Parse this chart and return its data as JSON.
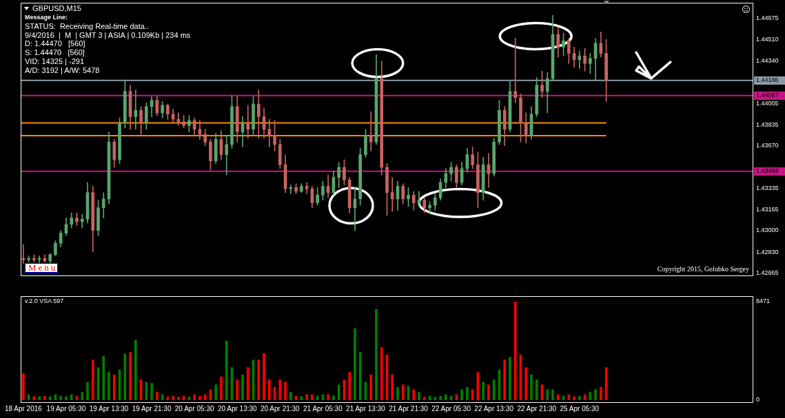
{
  "chart_data": [
    {
      "type": "candlestick",
      "title": "GBPUSD,M15",
      "categories": [
        null,
        null,
        null,
        null,
        null,
        null,
        null,
        null,
        null,
        null,
        null,
        null,
        null,
        null,
        null,
        null,
        null,
        null,
        null,
        null,
        null,
        null,
        null,
        null,
        null,
        null,
        null,
        null,
        null,
        null,
        null,
        null,
        null,
        null,
        null,
        null,
        null,
        null,
        null,
        null,
        null,
        null,
        null,
        null,
        null,
        null,
        null,
        null,
        null,
        null,
        null,
        null,
        null,
        null,
        null,
        null,
        null,
        null,
        null,
        null,
        null,
        null,
        null,
        null,
        null,
        null,
        null,
        null,
        null,
        null,
        null,
        null,
        null,
        null,
        null,
        null,
        null,
        null,
        null,
        null,
        null,
        null,
        null,
        null,
        null,
        null,
        null,
        null,
        null,
        null,
        null,
        null,
        null,
        null,
        null,
        null,
        null,
        null,
        null,
        null,
        null,
        null,
        null,
        null,
        null,
        null,
        null,
        null,
        null,
        null,
        null,
        null,
        null,
        null,
        null,
        null,
        null,
        null,
        null,
        null,
        null,
        null,
        null,
        null,
        null,
        null,
        null,
        null,
        null,
        null,
        null,
        null,
        null,
        null,
        null,
        null,
        null
      ],
      "ohlc": [
        [
          1.4278,
          1.4289,
          1.4274,
          1.4277
        ],
        [
          1.4277,
          1.428,
          1.4275,
          1.4278
        ],
        [
          1.4278,
          1.4281,
          1.4275,
          1.4277
        ],
        [
          1.4277,
          1.428,
          1.4274,
          1.4278
        ],
        [
          1.4278,
          1.4281,
          1.4275,
          1.4276
        ],
        [
          1.4276,
          1.4282,
          1.4274,
          1.4281
        ],
        [
          1.4281,
          1.4292,
          1.428,
          1.429
        ],
        [
          1.429,
          1.43,
          1.4287,
          1.4298
        ],
        [
          1.4298,
          1.431,
          1.4296,
          1.4305
        ],
        [
          1.4305,
          1.4314,
          1.4302,
          1.431
        ],
        [
          1.431,
          1.4314,
          1.4304,
          1.4307
        ],
        [
          1.4307,
          1.4313,
          1.4302,
          1.4309
        ],
        [
          1.4309,
          1.4338,
          1.4306,
          1.433
        ],
        [
          1.433,
          1.4335,
          1.4283,
          1.43
        ],
        [
          1.43,
          1.4324,
          1.4296,
          1.4318
        ],
        [
          1.4318,
          1.433,
          1.431,
          1.4325
        ],
        [
          1.4325,
          1.4378,
          1.4321,
          1.437
        ],
        [
          1.437,
          1.4372,
          1.435,
          1.4356
        ],
        [
          1.4356,
          1.4389,
          1.4353,
          1.4385
        ],
        [
          1.4385,
          1.4419,
          1.4381,
          1.441
        ],
        [
          1.441,
          1.4415,
          1.438,
          1.439
        ],
        [
          1.439,
          1.4411,
          1.438,
          1.4395
        ],
        [
          1.4395,
          1.4398,
          1.4376,
          1.4385
        ],
        [
          1.4385,
          1.4401,
          1.438,
          1.4398
        ],
        [
          1.4398,
          1.4406,
          1.439,
          1.4403
        ],
        [
          1.4403,
          1.4406,
          1.4391,
          1.4393
        ],
        [
          1.4393,
          1.4402,
          1.4389,
          1.4399
        ],
        [
          1.4399,
          1.44,
          1.4388,
          1.4392
        ],
        [
          1.4392,
          1.4396,
          1.4385,
          1.4388
        ],
        [
          1.4388,
          1.4393,
          1.4383,
          1.4386
        ],
        [
          1.4386,
          1.4391,
          1.4381,
          1.4383
        ],
        [
          1.4383,
          1.4391,
          1.4378,
          1.4387
        ],
        [
          1.4387,
          1.4389,
          1.4375,
          1.438
        ],
        [
          1.438,
          1.4387,
          1.4372,
          1.4376
        ],
        [
          1.4376,
          1.438,
          1.4367,
          1.437
        ],
        [
          1.437,
          1.4372,
          1.4348,
          1.4355
        ],
        [
          1.4355,
          1.4377,
          1.4353,
          1.4372
        ],
        [
          1.4372,
          1.4379,
          1.4356,
          1.436
        ],
        [
          1.436,
          1.4375,
          1.4344,
          1.4368
        ],
        [
          1.4368,
          1.4407,
          1.4365,
          1.4398
        ],
        [
          1.4398,
          1.4406,
          1.437,
          1.4378
        ],
        [
          1.4378,
          1.439,
          1.4366,
          1.4385
        ],
        [
          1.4385,
          1.4399,
          1.4373,
          1.438
        ],
        [
          1.438,
          1.4406,
          1.4375,
          1.44
        ],
        [
          1.44,
          1.4411,
          1.4373,
          1.439
        ],
        [
          1.439,
          1.4397,
          1.4373,
          1.438
        ],
        [
          1.438,
          1.4388,
          1.4366,
          1.4375
        ],
        [
          1.4375,
          1.4387,
          1.4363,
          1.4368
        ],
        [
          1.4368,
          1.4372,
          1.4349,
          1.4352
        ],
        [
          1.4352,
          1.436,
          1.433,
          1.4333
        ],
        [
          1.4333,
          1.4336,
          1.4329,
          1.4334
        ],
        [
          1.4334,
          1.4337,
          1.4329,
          1.4331
        ],
        [
          1.4331,
          1.4337,
          1.433,
          1.4335
        ],
        [
          1.4335,
          1.4338,
          1.4329,
          1.4333
        ],
        [
          1.4333,
          1.4335,
          1.4318,
          1.4322
        ],
        [
          1.4322,
          1.4334,
          1.432,
          1.4328
        ],
        [
          1.4328,
          1.4339,
          1.4324,
          1.4335
        ],
        [
          1.4335,
          1.4344,
          1.4326,
          1.433
        ],
        [
          1.433,
          1.4347,
          1.4328,
          1.4342
        ],
        [
          1.4342,
          1.4354,
          1.4334,
          1.435
        ],
        [
          1.435,
          1.4356,
          1.4336,
          1.434
        ],
        [
          1.434,
          1.4342,
          1.4314,
          1.4318
        ],
        [
          1.4318,
          1.4334,
          1.43,
          1.4325
        ],
        [
          1.4325,
          1.4365,
          1.432,
          1.436
        ],
        [
          1.436,
          1.438,
          1.4358,
          1.4375
        ],
        [
          1.4375,
          1.4394,
          1.4363,
          1.437
        ],
        [
          1.437,
          1.4439,
          1.4368,
          1.442
        ],
        [
          1.442,
          1.4434,
          1.4344,
          1.435
        ],
        [
          1.435,
          1.4353,
          1.4312,
          1.433
        ],
        [
          1.433,
          1.4342,
          1.4315,
          1.4325
        ],
        [
          1.4325,
          1.4339,
          1.4316,
          1.4335
        ],
        [
          1.4335,
          1.4337,
          1.4321,
          1.4325
        ],
        [
          1.4325,
          1.4334,
          1.4319,
          1.4328
        ],
        [
          1.4328,
          1.4331,
          1.4316,
          1.4322
        ],
        [
          1.4322,
          1.4331,
          1.4319,
          1.4324
        ],
        [
          1.4324,
          1.4326,
          1.4314,
          1.4318
        ],
        [
          1.4318,
          1.4323,
          1.4313,
          1.432
        ],
        [
          1.432,
          1.4329,
          1.4316,
          1.4326
        ],
        [
          1.4326,
          1.4341,
          1.4324,
          1.4338
        ],
        [
          1.4338,
          1.4349,
          1.4334,
          1.4345
        ],
        [
          1.4345,
          1.4354,
          1.4339,
          1.435
        ],
        [
          1.435,
          1.4352,
          1.4334,
          1.4338
        ],
        [
          1.4338,
          1.4354,
          1.4336,
          1.4349
        ],
        [
          1.4349,
          1.4365,
          1.4346,
          1.436
        ],
        [
          1.436,
          1.4366,
          1.4349,
          1.4352
        ],
        [
          1.4352,
          1.4362,
          1.4318,
          1.433
        ],
        [
          1.433,
          1.4358,
          1.4324,
          1.4352
        ],
        [
          1.4352,
          1.4361,
          1.4334,
          1.4345
        ],
        [
          1.4345,
          1.4373,
          1.4343,
          1.437
        ],
        [
          1.437,
          1.4403,
          1.4368,
          1.4395
        ],
        [
          1.4395,
          1.4398,
          1.4367,
          1.438
        ],
        [
          1.438,
          1.4418,
          1.4378,
          1.441
        ],
        [
          1.441,
          1.4452,
          1.4401,
          1.4405
        ],
        [
          1.4405,
          1.4408,
          1.437,
          1.4385
        ],
        [
          1.4385,
          1.4393,
          1.4369,
          1.4375
        ],
        [
          1.4375,
          1.4398,
          1.4372,
          1.4392
        ],
        [
          1.4392,
          1.4421,
          1.439,
          1.4415
        ],
        [
          1.4415,
          1.4426,
          1.4405,
          1.441
        ],
        [
          1.441,
          1.4425,
          1.4393,
          1.442
        ],
        [
          1.442,
          1.447,
          1.4418,
          1.4455
        ],
        [
          1.4455,
          1.446,
          1.4437,
          1.4445
        ],
        [
          1.4445,
          1.4456,
          1.4438,
          1.445
        ],
        [
          1.445,
          1.4452,
          1.4432,
          1.444
        ],
        [
          1.444,
          1.4445,
          1.4429,
          1.4435
        ],
        [
          1.4435,
          1.4442,
          1.4428,
          1.4438
        ],
        [
          1.4438,
          1.4444,
          1.4426,
          1.4432
        ],
        [
          1.4432,
          1.444,
          1.4424,
          1.4436
        ],
        [
          1.4436,
          1.4452,
          1.4419,
          1.4448
        ],
        [
          1.4448,
          1.4457,
          1.4437,
          1.444
        ],
        [
          1.444,
          1.4451,
          1.4402,
          1.44186
        ],
        null,
        null,
        null,
        null,
        null,
        null,
        null,
        null,
        null,
        null,
        null,
        null,
        null,
        null,
        null,
        null,
        null,
        null,
        null,
        null,
        null,
        null,
        null,
        null,
        null,
        null,
        null
      ],
      "colors": [
        "#c8645f",
        "#5aa66e",
        "#c8645f",
        "#5aa66e",
        "#c8645f",
        "#5aa66e",
        "#5aa66e",
        "#5aa66e",
        "#5aa66e",
        "#5aa66e",
        "#c8645f",
        "#5aa66e",
        "#5aa66e",
        "#c8645f",
        "#5aa66e",
        "#5aa66e",
        "#5aa66e",
        "#c8645f",
        "#5aa66e",
        "#5aa66e",
        "#c8645f",
        "#5aa66e",
        "#c8645f",
        "#5aa66e",
        "#5aa66e",
        "#c8645f",
        "#5aa66e",
        "#c8645f",
        "#c8645f",
        "#c8645f",
        "#c8645f",
        "#5aa66e",
        "#c8645f",
        "#c8645f",
        "#c8645f",
        "#c8645f",
        "#5aa66e",
        "#c8645f",
        "#5aa66e",
        "#5aa66e",
        "#c8645f",
        "#5aa66e",
        "#c8645f",
        "#5aa66e",
        "#c8645f",
        "#c8645f",
        "#c8645f",
        "#c8645f",
        "#c8645f",
        "#c8645f",
        "#5aa66e",
        "#c8645f",
        "#5aa66e",
        "#c8645f",
        "#c8645f",
        "#5aa66e",
        "#5aa66e",
        "#c8645f",
        "#5aa66e",
        "#5aa66e",
        "#c8645f",
        "#c8645f",
        "#5aa66e",
        "#5aa66e",
        "#5aa66e",
        "#c8645f",
        "#5aa66e",
        "#c8645f",
        "#c8645f",
        "#c8645f",
        "#5aa66e",
        "#c8645f",
        "#5aa66e",
        "#c8645f",
        "#5aa66e",
        "#c8645f",
        "#5aa66e",
        "#5aa66e",
        "#5aa66e",
        "#5aa66e",
        "#5aa66e",
        "#c8645f",
        "#5aa66e",
        "#5aa66e",
        "#c8645f",
        "#c8645f",
        "#5aa66e",
        "#c8645f",
        "#5aa66e",
        "#5aa66e",
        "#c8645f",
        "#5aa66e",
        "#c8645f",
        "#c8645f",
        "#c8645f",
        "#5aa66e",
        "#5aa66e",
        "#c8645f",
        "#5aa66e",
        "#5aa66e",
        "#c8645f",
        "#5aa66e",
        "#c8645f",
        "#c8645f",
        "#5aa66e",
        "#c8645f",
        "#5aa66e",
        "#5aa66e",
        "#c8645f",
        "#c8645f",
        null,
        null,
        null,
        null,
        null,
        null,
        null,
        null,
        null,
        null,
        null,
        null,
        null,
        null,
        null,
        null,
        null,
        null,
        null,
        null,
        null,
        null,
        null,
        null,
        null,
        null,
        null
      ],
      "ylim": [
        1.4264,
        1.448
      ],
      "yticks": [
        1.42665,
        {
          "value": 1.4283,
          "label": "1.42830"
        },
        {
          "value": 1.43,
          "label": "1.43000"
        },
        1.43165,
        1.43335,
        {
          "value": 1.4367,
          "label": "1.43670"
        },
        1.43835,
        1.44005,
        {
          "value": 1.4434,
          "label": "1.44340"
        },
        {
          "value": 1.4451,
          "label": "1.44510"
        },
        1.44675
      ],
      "tick_labels": "y",
      "ref_lines": [
        {
          "axis": "y",
          "value": 1.44186,
          "label": "1.44186",
          "color": "#8c9aa8"
        },
        {
          "axis": "y",
          "value": 1.44067,
          "label": "1.44067",
          "color": "#c71585"
        },
        {
          "axis": "y",
          "value": 1.43469,
          "label": "1.43469",
          "color": "#c71585"
        },
        {
          "axis": "y",
          "value": 1.4385,
          "color": "#ff8c00"
        },
        {
          "axis": "y",
          "value": 1.4375,
          "color": "#ff8c00"
        }
      ],
      "annotations": [
        "Message Line:",
        "STATUS:  Receiving Real-time data..",
        "9/4/2016  |  M  | GMT 3 | ASIA | 0.109Kb | 234 ms",
        "D: 1.44470   [560]",
        "S: 1.44470   [560]",
        "VID: 14325 | -291",
        "A/D: 3192 | A/W: 5478",
        "Copyright 2015, Golubko Sergey",
        "Menu"
      ]
    },
    {
      "type": "bar",
      "title": "v.2.0 VSA 597",
      "categories": [
        "18 Apr 2016",
        null,
        null,
        null,
        null,
        null,
        null,
        null,
        "19 Apr 05:30",
        null,
        null,
        null,
        null,
        null,
        null,
        null,
        "19 Apr 13:30",
        null,
        null,
        null,
        null,
        null,
        null,
        null,
        "19 Apr 21:30",
        null,
        null,
        null,
        null,
        null,
        null,
        null,
        "20 Apr 05:30",
        null,
        null,
        null,
        null,
        null,
        null,
        null,
        "20 Apr 13:30",
        null,
        null,
        null,
        null,
        null,
        null,
        null,
        "20 Apr 21:30",
        null,
        null,
        null,
        null,
        null,
        null,
        null,
        "21 Apr 05:30",
        null,
        null,
        null,
        null,
        null,
        null,
        null,
        "21 Apr 13:30",
        null,
        null,
        null,
        null,
        null,
        null,
        null,
        "21 Apr 21:30",
        null,
        null,
        null,
        null,
        null,
        null,
        null,
        "22 Apr 05:30",
        null,
        null,
        null,
        null,
        null,
        null,
        null,
        "22 Apr 13:30",
        null,
        null,
        null,
        null,
        null,
        null,
        null,
        "22 Apr 21:30",
        null,
        null,
        null,
        null,
        null,
        null,
        null,
        "25 Apr 05:30",
        null,
        null,
        null,
        null,
        null,
        null,
        null,
        null,
        null,
        null,
        null,
        null,
        null,
        null,
        null,
        null,
        null,
        null,
        null,
        null,
        null,
        null,
        null,
        null,
        null,
        null,
        null,
        null,
        null,
        null,
        null,
        null
      ],
      "values": [
        2260,
        470,
        300,
        300,
        340,
        300,
        470,
        340,
        300,
        470,
        340,
        680,
        1540,
        3460,
        2800,
        3760,
        2390,
        2180,
        2600,
        3970,
        4100,
        5170,
        1750,
        1540,
        1450,
        680,
        470,
        260,
        340,
        260,
        340,
        260,
        470,
        340,
        470,
        900,
        1320,
        2000,
        5080,
        2800,
        1750,
        2180,
        2800,
        3460,
        3460,
        4010,
        1750,
        1110,
        1750,
        1540,
        680,
        340,
        300,
        470,
        470,
        340,
        470,
        470,
        340,
        1320,
        1750,
        2390,
        6150,
        4100,
        1540,
        2180,
        7810,
        4530,
        3890,
        2180,
        1110,
        1320,
        1200,
        900,
        680,
        260,
        340,
        260,
        340,
        470,
        340,
        470,
        900,
        1110,
        900,
        2390,
        1540,
        1320,
        1750,
        2600,
        3460,
        3670,
        8471,
        3890,
        2800,
        2180,
        1750,
        1320,
        900,
        900,
        470,
        340,
        470,
        300,
        340,
        470,
        680,
        900,
        1110,
        2800,
        null,
        null,
        null,
        null,
        null,
        null,
        null,
        null,
        null,
        null,
        null,
        null,
        null,
        null,
        null,
        null,
        null,
        null,
        null,
        null,
        null,
        null,
        null,
        null,
        null,
        null,
        null
      ],
      "colors": [
        "#ff0000",
        "#008000",
        "#ff0000",
        "#008000",
        "#ff0000",
        "#008000",
        "#008000",
        "#008000",
        "#008000",
        "#008000",
        "#ff0000",
        "#008000",
        "#008000",
        "#ff0000",
        "#008000",
        "#008000",
        "#008000",
        "#ff0000",
        "#008000",
        "#008000",
        "#ff0000",
        "#008000",
        "#ff0000",
        "#008000",
        "#008000",
        "#ff0000",
        "#008000",
        "#ff0000",
        "#ff0000",
        "#ff0000",
        "#ff0000",
        "#008000",
        "#ff0000",
        "#ff0000",
        "#ff0000",
        "#ff0000",
        "#008000",
        "#ff0000",
        "#008000",
        "#008000",
        "#ff0000",
        "#008000",
        "#ff0000",
        "#008000",
        "#ff0000",
        "#ff0000",
        "#ff0000",
        "#ff0000",
        "#ff0000",
        "#ff0000",
        "#008000",
        "#ff0000",
        "#008000",
        "#ff0000",
        "#ff0000",
        "#008000",
        "#008000",
        "#ff0000",
        "#008000",
        "#008000",
        "#ff0000",
        "#ff0000",
        "#008000",
        "#008000",
        "#008000",
        "#ff0000",
        "#008000",
        "#ff0000",
        "#ff0000",
        "#ff0000",
        "#008000",
        "#ff0000",
        "#008000",
        "#ff0000",
        "#008000",
        "#ff0000",
        "#008000",
        "#008000",
        "#008000",
        "#008000",
        "#008000",
        "#ff0000",
        "#008000",
        "#008000",
        "#ff0000",
        "#ff0000",
        "#008000",
        "#ff0000",
        "#008000",
        "#008000",
        "#ff0000",
        "#008000",
        "#ff0000",
        "#ff0000",
        "#ff0000",
        "#008000",
        "#008000",
        "#ff0000",
        "#008000",
        "#008000",
        "#ff0000",
        "#008000",
        "#ff0000",
        "#ff0000",
        "#008000",
        "#ff0000",
        "#008000",
        "#008000",
        "#ff0000",
        "#ff0000",
        null,
        null,
        null,
        null,
        null,
        null,
        null,
        null,
        null,
        null,
        null,
        null,
        null,
        null,
        null,
        null,
        null,
        null,
        null,
        null,
        null,
        null,
        null,
        null,
        null,
        null,
        null
      ],
      "ylim": [
        0,
        8471
      ],
      "yticks": [
        0,
        8471
      ]
    }
  ]
}
